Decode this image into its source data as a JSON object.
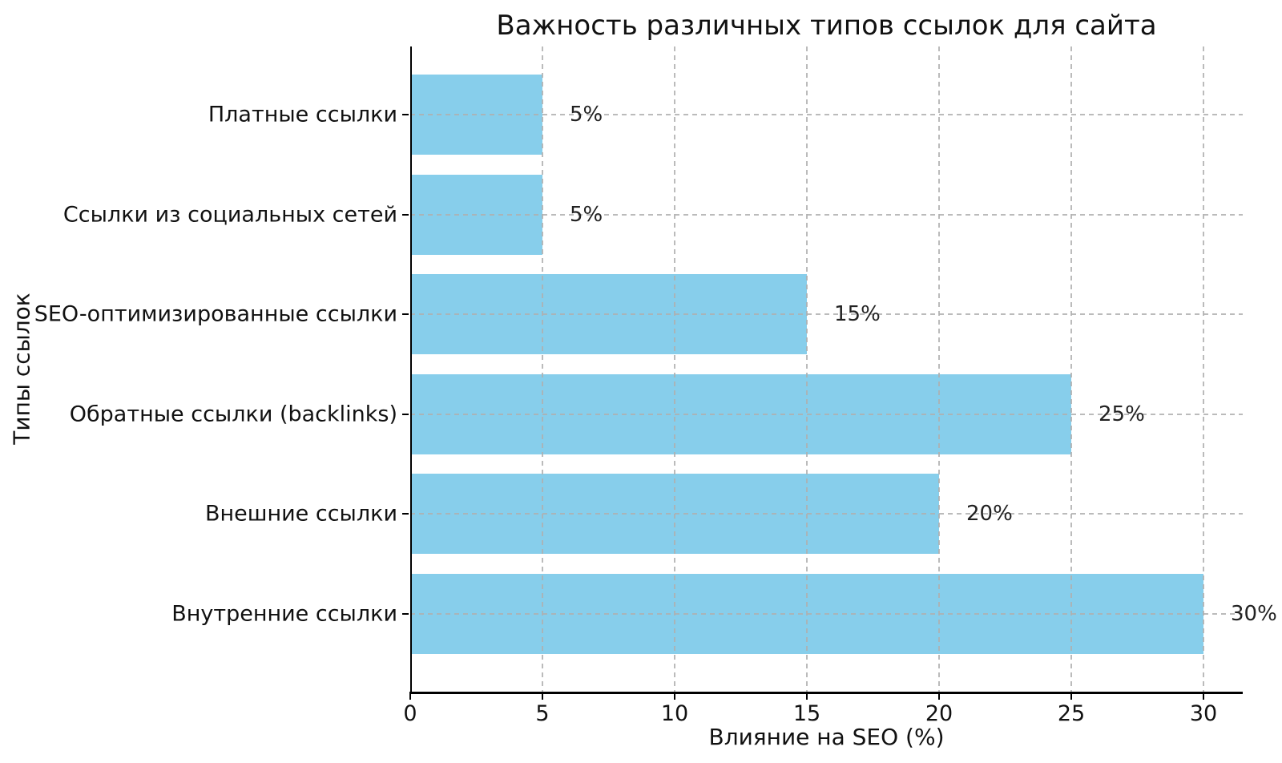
{
  "chart_data": {
    "type": "bar",
    "orientation": "horizontal",
    "title": "Важность различных типов ссылок для сайта",
    "xlabel": "Влияние на SEO (%)",
    "ylabel": "Типы ссылок",
    "categories": [
      "Платные ссылки",
      "Ссылки из социальных сетей",
      "SEO-оптимизированные ссылки",
      "Обратные ссылки (backlinks)",
      "Внешние ссылки",
      "Внутренние ссылки"
    ],
    "values": [
      5,
      5,
      15,
      25,
      20,
      30
    ],
    "value_labels": [
      "5%",
      "5%",
      "15%",
      "25%",
      "20%",
      "30%"
    ],
    "xticks": [
      "0",
      "5",
      "10",
      "15",
      "20",
      "25",
      "30"
    ],
    "xtick_values": [
      0,
      5,
      10,
      15,
      20,
      25,
      30
    ],
    "xlim": [
      0,
      31.5
    ],
    "grid": {
      "style": "dashed",
      "axes": "both",
      "color": "#afafaf",
      "above_bars": true
    },
    "bar_color": "#87CEEB",
    "axis_color": "#000000",
    "text_color": "#111111"
  }
}
